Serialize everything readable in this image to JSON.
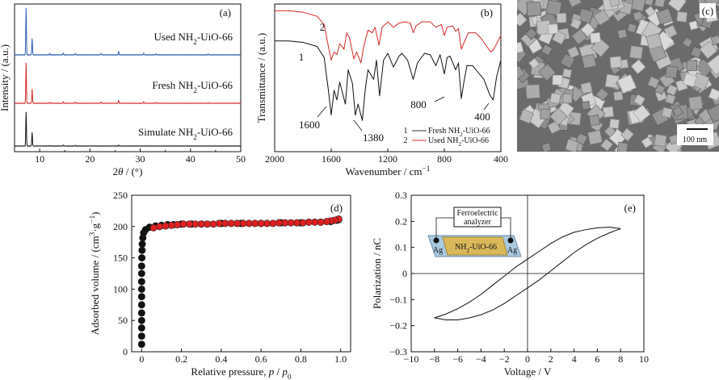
{
  "chart_data": [
    {
      "id": "a",
      "type": "line",
      "panel_label": "(a)",
      "xlabel_prefix": "2",
      "xlabel_theta": "θ",
      "xlabel_suffix": " / (°)",
      "ylabel": "Intensity / (a.u.)",
      "xlim": [
        5,
        50
      ],
      "xticks": [
        "10",
        "20",
        "30",
        "40",
        "50"
      ],
      "series": [
        {
          "name": "Used NH2-UiO-66",
          "label_main": "Used NH",
          "label_sub": "2",
          "label_tail": "-UiO-66",
          "color": "#2e5fb5",
          "peaks": [
            [
              7.3,
              1.0
            ],
            [
              8.5,
              0.35
            ],
            [
              12.0,
              0.03
            ],
            [
              14.7,
              0.04
            ],
            [
              17.1,
              0.03
            ],
            [
              22.2,
              0.03
            ],
            [
              25.7,
              0.07
            ],
            [
              30.7,
              0.03
            ],
            [
              33.1,
              0.02
            ],
            [
              43.5,
              0.02
            ]
          ]
        },
        {
          "name": "Fresh NH2-UiO-66",
          "label_main": "Fresh NH",
          "label_sub": "2",
          "label_tail": "-UiO-66",
          "color": "#d62b2b",
          "peaks": [
            [
              7.3,
              1.0
            ],
            [
              8.5,
              0.35
            ],
            [
              12.0,
              0.03
            ],
            [
              14.7,
              0.04
            ],
            [
              17.1,
              0.03
            ],
            [
              22.2,
              0.03
            ],
            [
              25.7,
              0.07
            ],
            [
              30.7,
              0.03
            ],
            [
              33.1,
              0.02
            ],
            [
              43.5,
              0.02
            ]
          ]
        },
        {
          "name": "Simulate NH2-UiO-66",
          "label_main": "Simulate NH",
          "label_sub": "2",
          "label_tail": "-UiO-66",
          "color": "#111111",
          "peaks": [
            [
              7.3,
              1.0
            ],
            [
              8.5,
              0.4
            ],
            [
              12.0,
              0.02
            ],
            [
              14.7,
              0.03
            ],
            [
              17.1,
              0.02
            ],
            [
              25.7,
              0.03
            ]
          ]
        }
      ]
    },
    {
      "id": "b",
      "type": "line",
      "panel_label": "(b)",
      "xlabel": "Wavenumber / cm",
      "xlabel_sup": "−1",
      "ylabel": "Transmittance / (a.u.)",
      "xlim": [
        2000,
        400
      ],
      "xticks": [
        "2000",
        "1600",
        "1200",
        "800",
        "400"
      ],
      "annotations": [
        "1",
        "2",
        "1600",
        "1380",
        "800",
        "400"
      ],
      "legend": [
        {
          "num": "1",
          "text_main": "Fresh NH",
          "text_sub": "2",
          "text_tail": "-UiO-66",
          "color": "#333333"
        },
        {
          "num": "2",
          "text_main": "Used NH",
          "text_sub": "2",
          "text_tail": "-UiO-66",
          "color": "#d62b2b"
        }
      ],
      "series": [
        {
          "name": "1",
          "color": "#111111",
          "points": [
            [
              2000,
              0.76
            ],
            [
              1900,
              0.76
            ],
            [
              1800,
              0.75
            ],
            [
              1700,
              0.72
            ],
            [
              1650,
              0.64
            ],
            [
              1620,
              0.4
            ],
            [
              1600,
              0.22
            ],
            [
              1580,
              0.4
            ],
            [
              1560,
              0.33
            ],
            [
              1540,
              0.46
            ],
            [
              1500,
              0.3
            ],
            [
              1480,
              0.55
            ],
            [
              1450,
              0.45
            ],
            [
              1430,
              0.22
            ],
            [
              1410,
              0.3
            ],
            [
              1380,
              0.18
            ],
            [
              1360,
              0.4
            ],
            [
              1340,
              0.55
            ],
            [
              1300,
              0.48
            ],
            [
              1280,
              0.62
            ],
            [
              1258,
              0.36
            ],
            [
              1230,
              0.62
            ],
            [
              1200,
              0.67
            ],
            [
              1160,
              0.57
            ],
            [
              1120,
              0.65
            ],
            [
              1100,
              0.67
            ],
            [
              1060,
              0.62
            ],
            [
              1020,
              0.48
            ],
            [
              990,
              0.6
            ],
            [
              940,
              0.67
            ],
            [
              900,
              0.66
            ],
            [
              860,
              0.58
            ],
            [
              830,
              0.66
            ],
            [
              800,
              0.52
            ],
            [
              780,
              0.64
            ],
            [
              760,
              0.65
            ],
            [
              720,
              0.55
            ],
            [
              700,
              0.6
            ],
            [
              680,
              0.34
            ],
            [
              660,
              0.47
            ],
            [
              640,
              0.58
            ],
            [
              600,
              0.58
            ],
            [
              560,
              0.53
            ],
            [
              520,
              0.48
            ],
            [
              480,
              0.37
            ],
            [
              455,
              0.33
            ],
            [
              430,
              0.5
            ],
            [
              400,
              0.62
            ]
          ]
        },
        {
          "name": "2",
          "color": "#d62b2b",
          "points": [
            [
              2000,
              0.98
            ],
            [
              1900,
              0.98
            ],
            [
              1800,
              0.97
            ],
            [
              1700,
              0.94
            ],
            [
              1650,
              0.88
            ],
            [
              1620,
              0.72
            ],
            [
              1600,
              0.62
            ],
            [
              1580,
              0.68
            ],
            [
              1560,
              0.66
            ],
            [
              1540,
              0.74
            ],
            [
              1510,
              0.7
            ],
            [
              1490,
              0.82
            ],
            [
              1470,
              0.78
            ],
            [
              1440,
              0.63
            ],
            [
              1420,
              0.68
            ],
            [
              1390,
              0.6
            ],
            [
              1370,
              0.72
            ],
            [
              1340,
              0.84
            ],
            [
              1310,
              0.82
            ],
            [
              1290,
              0.86
            ],
            [
              1262,
              0.73
            ],
            [
              1240,
              0.86
            ],
            [
              1200,
              0.9
            ],
            [
              1160,
              0.86
            ],
            [
              1120,
              0.89
            ],
            [
              1080,
              0.9
            ],
            [
              1040,
              0.89
            ],
            [
              1020,
              0.82
            ],
            [
              1000,
              0.87
            ],
            [
              960,
              0.9
            ],
            [
              900,
              0.9
            ],
            [
              860,
              0.86
            ],
            [
              820,
              0.88
            ],
            [
              800,
              0.8
            ],
            [
              780,
              0.86
            ],
            [
              740,
              0.87
            ],
            [
              720,
              0.83
            ],
            [
              700,
              0.85
            ],
            [
              680,
              0.7
            ],
            [
              660,
              0.75
            ],
            [
              630,
              0.82
            ],
            [
              580,
              0.82
            ],
            [
              540,
              0.78
            ],
            [
              500,
              0.72
            ],
            [
              470,
              0.68
            ],
            [
              450,
              0.7
            ],
            [
              420,
              0.76
            ],
            [
              400,
              0.8
            ]
          ]
        }
      ]
    },
    {
      "id": "c",
      "type": "image",
      "panel_label": "(c)",
      "scale_bar": "100 nm"
    },
    {
      "id": "d",
      "type": "scatter",
      "panel_label": "(d)",
      "xlabel": "Relative pressure, ",
      "xlabel_p": "p",
      "xlabel_mid": " / ",
      "xlabel_p0": "p",
      "xlabel_sub0": "0",
      "ylabel": "Adsorbed volume / (cm",
      "ylabel_sup": "3",
      "ylabel_mid": "·g",
      "ylabel_sup2": "−1",
      "ylabel_tail": ")",
      "xlim": [
        -0.05,
        1.05
      ],
      "ylim": [
        0,
        250
      ],
      "xticks": [
        "0",
        "0.2",
        "0.4",
        "0.6",
        "0.8",
        "1.0"
      ],
      "yticks": [
        "0",
        "50",
        "100",
        "150",
        "200",
        "250"
      ],
      "series": [
        {
          "name": "adsorption",
          "color": "#111111",
          "points": [
            [
              0.0,
              12
            ],
            [
              0.0,
              25
            ],
            [
              0.0,
              38
            ],
            [
              0.0,
              50
            ],
            [
              0.0,
              62
            ],
            [
              0.0,
              75
            ],
            [
              0.0,
              88
            ],
            [
              0.0,
              100
            ],
            [
              0.0,
              112
            ],
            [
              0.0,
              125
            ],
            [
              0.0,
              137
            ],
            [
              0.001,
              150
            ],
            [
              0.002,
              162
            ],
            [
              0.003,
              172
            ],
            [
              0.006,
              182
            ],
            [
              0.01,
              190
            ],
            [
              0.02,
              195
            ],
            [
              0.04,
              199
            ],
            [
              0.07,
              201
            ],
            [
              0.1,
              202
            ],
            [
              0.13,
              203
            ],
            [
              0.16,
              203
            ],
            [
              0.2,
              204
            ],
            [
              0.25,
              204
            ],
            [
              0.3,
              204
            ],
            [
              0.4,
              205
            ],
            [
              0.5,
              205
            ],
            [
              0.6,
              205
            ],
            [
              0.7,
              206
            ],
            [
              0.8,
              206
            ],
            [
              0.9,
              207
            ],
            [
              0.95,
              208
            ],
            [
              0.98,
              210
            ],
            [
              0.99,
              211
            ]
          ]
        },
        {
          "name": "desorption",
          "color": "#e02020",
          "points": [
            [
              0.99,
              212
            ],
            [
              0.97,
              210
            ],
            [
              0.95,
              209
            ],
            [
              0.93,
              208
            ],
            [
              0.9,
              207
            ],
            [
              0.87,
              207
            ],
            [
              0.84,
              207
            ],
            [
              0.81,
              206
            ],
            [
              0.78,
              206
            ],
            [
              0.75,
              206
            ],
            [
              0.72,
              206
            ],
            [
              0.69,
              206
            ],
            [
              0.66,
              205
            ],
            [
              0.63,
              205
            ],
            [
              0.6,
              205
            ],
            [
              0.57,
              205
            ],
            [
              0.54,
              205
            ],
            [
              0.51,
              205
            ],
            [
              0.48,
              205
            ],
            [
              0.45,
              205
            ],
            [
              0.42,
              205
            ],
            [
              0.39,
              205
            ],
            [
              0.36,
              204
            ],
            [
              0.33,
              204
            ],
            [
              0.3,
              204
            ],
            [
              0.27,
              204
            ],
            [
              0.24,
              204
            ],
            [
              0.21,
              204
            ],
            [
              0.18,
              203
            ],
            [
              0.15,
              202
            ],
            [
              0.12,
              201
            ],
            [
              0.09,
              200
            ],
            [
              0.06,
              198
            ]
          ]
        }
      ]
    },
    {
      "id": "e",
      "type": "line",
      "panel_label": "(e)",
      "xlabel": "Voltage / V",
      "ylabel": "Polarization / nC",
      "xlim": [
        -10,
        10
      ],
      "ylim": [
        -0.3,
        0.3
      ],
      "xticks": [
        "−10",
        "−8",
        "−6",
        "−4",
        "−2",
        "0",
        "2",
        "4",
        "6",
        "8",
        "10"
      ],
      "yticks": [
        "−0.3",
        "−0.2",
        "−0.1",
        "0",
        "0.1",
        "0.2",
        "0.3"
      ],
      "inset": {
        "box_top": "Ferroelectric",
        "box_bottom": "analyzer",
        "sample_main": "NH",
        "sample_sub": "2",
        "sample_tail": "-UiO-66",
        "electrode_left": "Ag",
        "electrode_right": "Ag"
      },
      "series": [
        {
          "name": "upper",
          "color": "#111111",
          "points": [
            [
              -8,
              -0.17
            ],
            [
              -7,
              -0.155
            ],
            [
              -6,
              -0.135
            ],
            [
              -5,
              -0.11
            ],
            [
              -4,
              -0.08
            ],
            [
              -3,
              -0.045
            ],
            [
              -2,
              -0.01
            ],
            [
              -1,
              0.025
            ],
            [
              0,
              0.055
            ],
            [
              1,
              0.085
            ],
            [
              2,
              0.115
            ],
            [
              3,
              0.14
            ],
            [
              4,
              0.158
            ],
            [
              5,
              0.168
            ],
            [
              6,
              0.175
            ],
            [
              7,
              0.178
            ],
            [
              8,
              0.172
            ]
          ]
        },
        {
          "name": "lower",
          "color": "#111111",
          "points": [
            [
              8,
              0.172
            ],
            [
              7,
              0.155
            ],
            [
              6,
              0.135
            ],
            [
              5,
              0.11
            ],
            [
              4,
              0.08
            ],
            [
              3,
              0.045
            ],
            [
              2,
              0.01
            ],
            [
              1,
              -0.025
            ],
            [
              0,
              -0.055
            ],
            [
              -1,
              -0.085
            ],
            [
              -2,
              -0.115
            ],
            [
              -3,
              -0.14
            ],
            [
              -4,
              -0.158
            ],
            [
              -5,
              -0.17
            ],
            [
              -6,
              -0.178
            ],
            [
              -7,
              -0.178
            ],
            [
              -8,
              -0.17
            ]
          ]
        }
      ]
    }
  ]
}
